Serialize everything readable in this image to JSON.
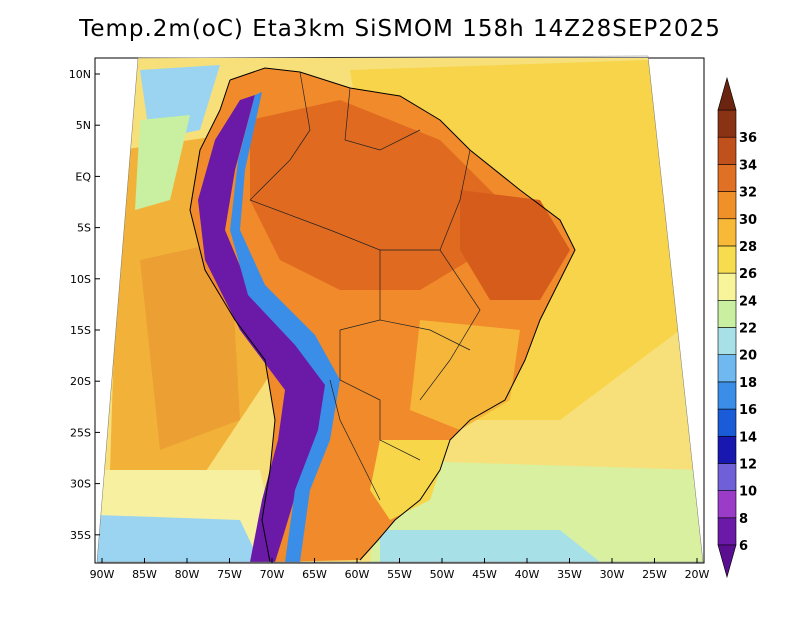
{
  "title": "Temp.2m(oC) Eta3km SiSMOM 158h 14Z28SEP2025",
  "latitude_labels": [
    "10N",
    "5N",
    "EQ",
    "5S",
    "10S",
    "15S",
    "20S",
    "25S",
    "30S",
    "35S"
  ],
  "longitude_labels": [
    "90W",
    "85W",
    "80W",
    "75W",
    "70W",
    "65W",
    "60W",
    "55W",
    "50W",
    "45W",
    "40W",
    "35W",
    "30W",
    "25W",
    "20W"
  ],
  "colorbar": {
    "labels": [
      "6",
      "8",
      "10",
      "12",
      "14",
      "16",
      "18",
      "20",
      "22",
      "24",
      "26",
      "28",
      "30",
      "32",
      "34",
      "36"
    ],
    "colors": [
      "#6a1aa6",
      "#9a3cc8",
      "#7060d8",
      "#1818b0",
      "#1a5cd8",
      "#3a8ee8",
      "#70b8f0",
      "#a8e0e8",
      "#c8f0a0",
      "#f8f49a",
      "#f8dc50",
      "#f8b838",
      "#f09028",
      "#e07024",
      "#c0501c",
      "#8a3214"
    ],
    "under_color": "#5a0f90",
    "over_color": "#6a2410"
  },
  "legend_colors": {
    "ocean_warm": "#f7d64a",
    "ocean_mid": "#f7e989",
    "land_hot": "#f08a2a",
    "land_very_hot": "#e06a20",
    "andes_cold": "#6a1aa6",
    "coast_cool": "#9ad4f0"
  }
}
